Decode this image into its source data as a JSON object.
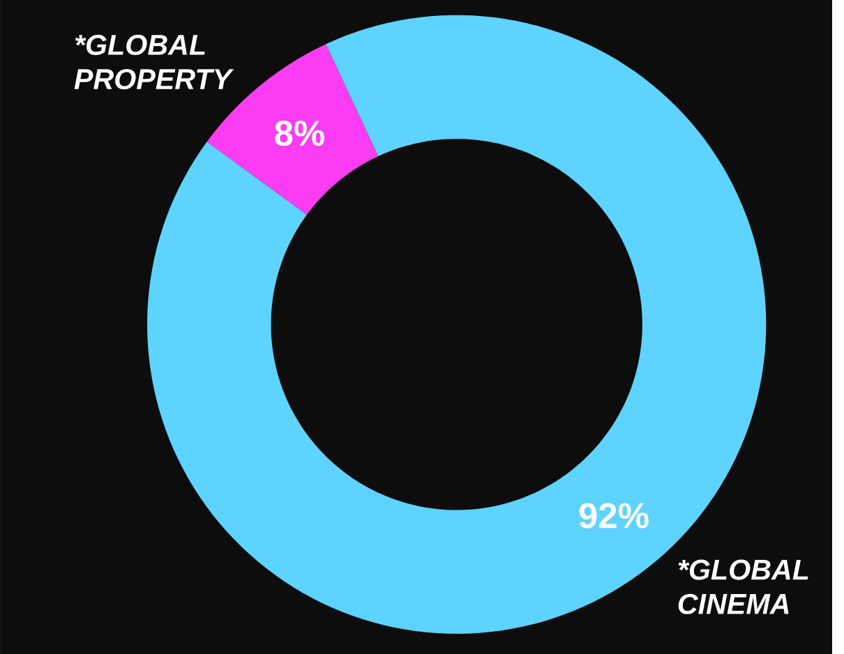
{
  "chart_data": {
    "type": "donut",
    "categories": [
      "*GLOBAL PROPERTY",
      "*GLOBAL CINEMA"
    ],
    "values": [
      8,
      92
    ],
    "colors": [
      "#fb3cf3",
      "#5ed3fe"
    ],
    "value_labels": [
      "8%",
      "92%"
    ]
  }
}
